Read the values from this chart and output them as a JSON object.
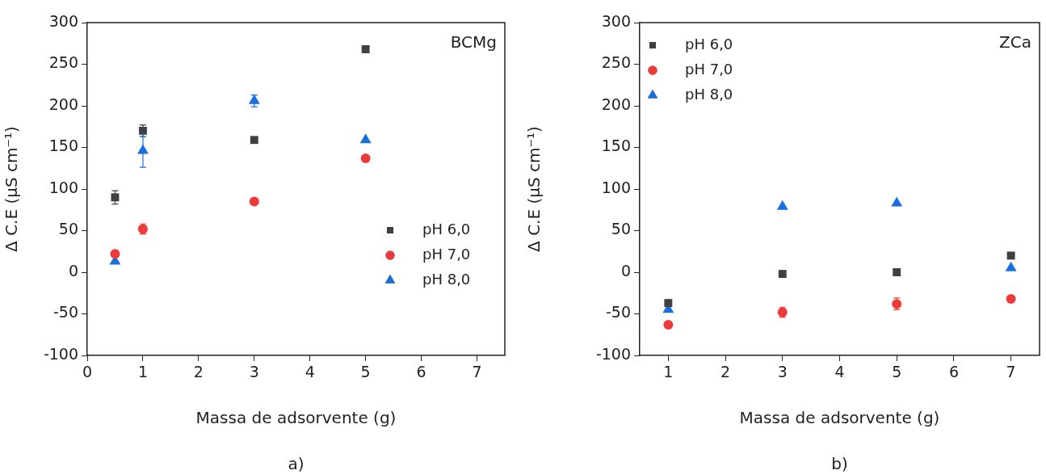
{
  "chart_data": [
    {
      "type": "scatter",
      "xlabel": "Massa de adsorvente (g)",
      "ylabel": "Δ C.E (µS cm⁻¹)",
      "annotations": [
        "BCMg",
        "a)"
      ],
      "xlim": [
        0,
        7.5
      ],
      "xticks": [
        0,
        1,
        2,
        3,
        4,
        5,
        6,
        7
      ],
      "ylim": [
        -100,
        300
      ],
      "yticks": [
        -100,
        -50,
        0,
        50,
        100,
        150,
        200,
        250,
        300
      ],
      "grid": false,
      "legend": "bottom right",
      "series": [
        {
          "name": "pH 6,0",
          "color": "#404040",
          "marker": "square",
          "x": [
            0.5,
            1,
            3,
            5
          ],
          "values": [
            90,
            170,
            159,
            268
          ],
          "errors": [
            8,
            7,
            null,
            null
          ]
        },
        {
          "name": "pH 7,0",
          "color": "#ee3a3a",
          "marker": "circle",
          "x": [
            0.5,
            1,
            3,
            5
          ],
          "values": [
            22,
            52,
            85,
            137
          ],
          "errors": [
            null,
            6,
            null,
            null
          ]
        },
        {
          "name": "pH 8,0",
          "color": "#1a6fdf",
          "marker": "triangle",
          "x": [
            0.5,
            1,
            3,
            5
          ],
          "values": [
            13,
            146,
            206,
            159
          ],
          "errors": [
            null,
            20,
            7,
            null
          ]
        }
      ]
    },
    {
      "type": "scatter",
      "xlabel": "Massa de adsorvente (g)",
      "ylabel": "Δ C.E (µS cm⁻¹)",
      "annotations": [
        "ZCa",
        "b)"
      ],
      "xlim": [
        0.5,
        7.5
      ],
      "xticks": [
        1,
        2,
        3,
        4,
        5,
        6,
        7
      ],
      "ylim": [
        -100,
        300
      ],
      "yticks": [
        -100,
        -50,
        0,
        50,
        100,
        150,
        200,
        250,
        300
      ],
      "grid": false,
      "legend": "top left",
      "series": [
        {
          "name": "pH 6,0",
          "color": "#404040",
          "marker": "square",
          "x": [
            1,
            3,
            5,
            7
          ],
          "values": [
            -37,
            -2,
            0,
            20
          ]
        },
        {
          "name": "pH 7,0",
          "color": "#ee3a3a",
          "marker": "circle",
          "x": [
            1,
            3,
            5,
            7
          ],
          "values": [
            -63,
            -48,
            -38,
            -32
          ],
          "errors": [
            null,
            6,
            7,
            null
          ]
        },
        {
          "name": "pH 8,0",
          "color": "#1a6fdf",
          "marker": "triangle",
          "x": [
            1,
            3,
            5,
            7
          ],
          "values": [
            -45,
            79,
            83,
            5
          ]
        }
      ]
    }
  ]
}
